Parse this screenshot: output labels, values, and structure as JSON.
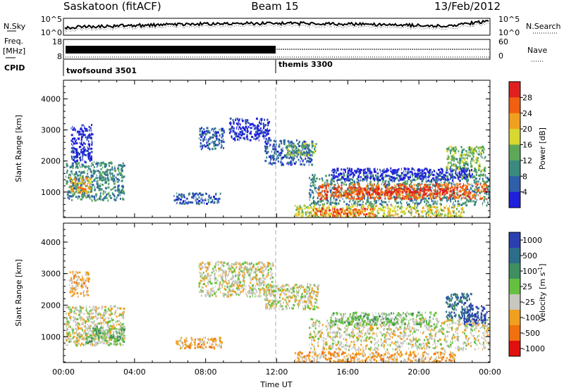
{
  "header": {
    "site": "Saskatoon (fitACF)",
    "beam": "Beam 15",
    "date": "13/Feb/2012"
  },
  "noise_panel": {
    "left_label": "N.Sky",
    "left_ticks": [
      "10^5",
      "10^0"
    ],
    "right_ticks": [
      "10^5",
      "10^0"
    ],
    "right_label": "N.Search",
    "right_label_style": "dotted"
  },
  "freq_panel": {
    "left_label_line1": "Freq.",
    "left_label_line2": "[MHz]",
    "left_ticks": [
      "18",
      "8"
    ],
    "right_ticks": [
      "60",
      "0"
    ],
    "right_label": "Nave",
    "right_label_style": "dotted"
  },
  "cpid_panel": {
    "label": "CPID",
    "modes": [
      {
        "name": "twofsound 3501",
        "start_hour": 0
      },
      {
        "name": "themis 3300",
        "start_hour": 12
      }
    ]
  },
  "chart_data": [
    {
      "type": "heatmap",
      "title": "",
      "ylabel": "Slant Range [km]",
      "xlabel": "",
      "xlim": [
        0,
        24
      ],
      "ylim": [
        180,
        4600
      ],
      "yticks": [
        "1000",
        "2000",
        "3000",
        "4000"
      ],
      "colorbar": {
        "label": "Power [dB]",
        "ticks": [
          "4",
          "8",
          "12",
          "16",
          "20",
          "24",
          "28"
        ],
        "colors": [
          "#1f1fdc",
          "#2f5fa8",
          "#3b8a80",
          "#5da858",
          "#d8d830",
          "#f0a020",
          "#f06010",
          "#e02020"
        ]
      },
      "regions": [
        {
          "x0": 0.1,
          "x1": 3.4,
          "y0": 750,
          "y1": 2000,
          "level": 2
        },
        {
          "x0": 0.3,
          "x1": 1.5,
          "y0": 1000,
          "y1": 1500,
          "level": 5
        },
        {
          "x0": 0.4,
          "x1": 1.6,
          "y0": 2000,
          "y1": 3200,
          "level": 0
        },
        {
          "x0": 6.2,
          "x1": 8.8,
          "y0": 650,
          "y1": 1000,
          "level": 1
        },
        {
          "x0": 7.6,
          "x1": 9.0,
          "y0": 2400,
          "y1": 3100,
          "level": 1
        },
        {
          "x0": 9.3,
          "x1": 11.6,
          "y0": 2700,
          "y1": 3400,
          "level": 0
        },
        {
          "x0": 11.3,
          "x1": 14.0,
          "y0": 1900,
          "y1": 2700,
          "level": 1
        },
        {
          "x0": 12.5,
          "x1": 14.2,
          "y0": 2200,
          "y1": 2600,
          "level": 3
        },
        {
          "x0": 13.8,
          "x1": 24.0,
          "y0": 600,
          "y1": 1600,
          "level": 2
        },
        {
          "x0": 14.3,
          "x1": 23.8,
          "y0": 800,
          "y1": 1300,
          "level": 6
        },
        {
          "x0": 16.5,
          "x1": 22.0,
          "y0": 950,
          "y1": 1150,
          "level": 7
        },
        {
          "x0": 13.0,
          "x1": 22.5,
          "y0": 200,
          "y1": 600,
          "level": 4
        },
        {
          "x0": 14.0,
          "x1": 17.5,
          "y0": 250,
          "y1": 500,
          "level": 6
        },
        {
          "x0": 21.5,
          "x1": 23.7,
          "y0": 1500,
          "y1": 2500,
          "level": 3
        },
        {
          "x0": 15.0,
          "x1": 23.0,
          "y0": 1400,
          "y1": 1800,
          "level": 0
        }
      ]
    },
    {
      "type": "heatmap",
      "title": "",
      "ylabel": "Slant Range [km]",
      "xlabel": "Time UT",
      "xlim": [
        0,
        24
      ],
      "ylim": [
        180,
        4600
      ],
      "xticks": [
        "00:00",
        "04:00",
        "08:00",
        "12:00",
        "16:00",
        "20:00",
        "00:00"
      ],
      "yticks": [
        "1000",
        "2000",
        "3000",
        "4000"
      ],
      "colorbar": {
        "label": "Velocity [m s-1]",
        "label_main": "Velocity [m s",
        "label_sup": "-1",
        "label_close": "]",
        "ticks": [
          "1000",
          "500",
          "100",
          "25",
          "-25",
          "-100",
          "-500",
          "-1000"
        ],
        "colors": [
          "#2a3fb0",
          "#2e6c8c",
          "#3f8f60",
          "#66c040",
          "#c8c8c0",
          "#f0a020",
          "#f07010",
          "#e01010"
        ]
      },
      "regions": [
        {
          "x0": 0.1,
          "x1": 3.4,
          "y0": 750,
          "y1": 2000,
          "level": 4
        },
        {
          "x0": 1.2,
          "x1": 3.4,
          "y0": 800,
          "y1": 1350,
          "level": 3
        },
        {
          "x0": 0.3,
          "x1": 1.4,
          "y0": 2300,
          "y1": 3100,
          "level": 5
        },
        {
          "x0": 6.3,
          "x1": 8.9,
          "y0": 650,
          "y1": 1000,
          "level": 5
        },
        {
          "x0": 7.6,
          "x1": 11.8,
          "y0": 2300,
          "y1": 3400,
          "level": 4
        },
        {
          "x0": 11.3,
          "x1": 14.3,
          "y0": 1900,
          "y1": 2700,
          "level": 4
        },
        {
          "x0": 13.8,
          "x1": 24.0,
          "y0": 600,
          "y1": 1600,
          "level": 4
        },
        {
          "x0": 13.0,
          "x1": 22.0,
          "y0": 200,
          "y1": 550,
          "level": 5
        },
        {
          "x0": 21.5,
          "x1": 23.0,
          "y0": 1600,
          "y1": 2400,
          "level": 1
        },
        {
          "x0": 22.5,
          "x1": 23.8,
          "y0": 1400,
          "y1": 2000,
          "level": 0
        },
        {
          "x0": 15.0,
          "x1": 21.0,
          "y0": 1400,
          "y1": 1800,
          "level": 3
        }
      ]
    }
  ]
}
